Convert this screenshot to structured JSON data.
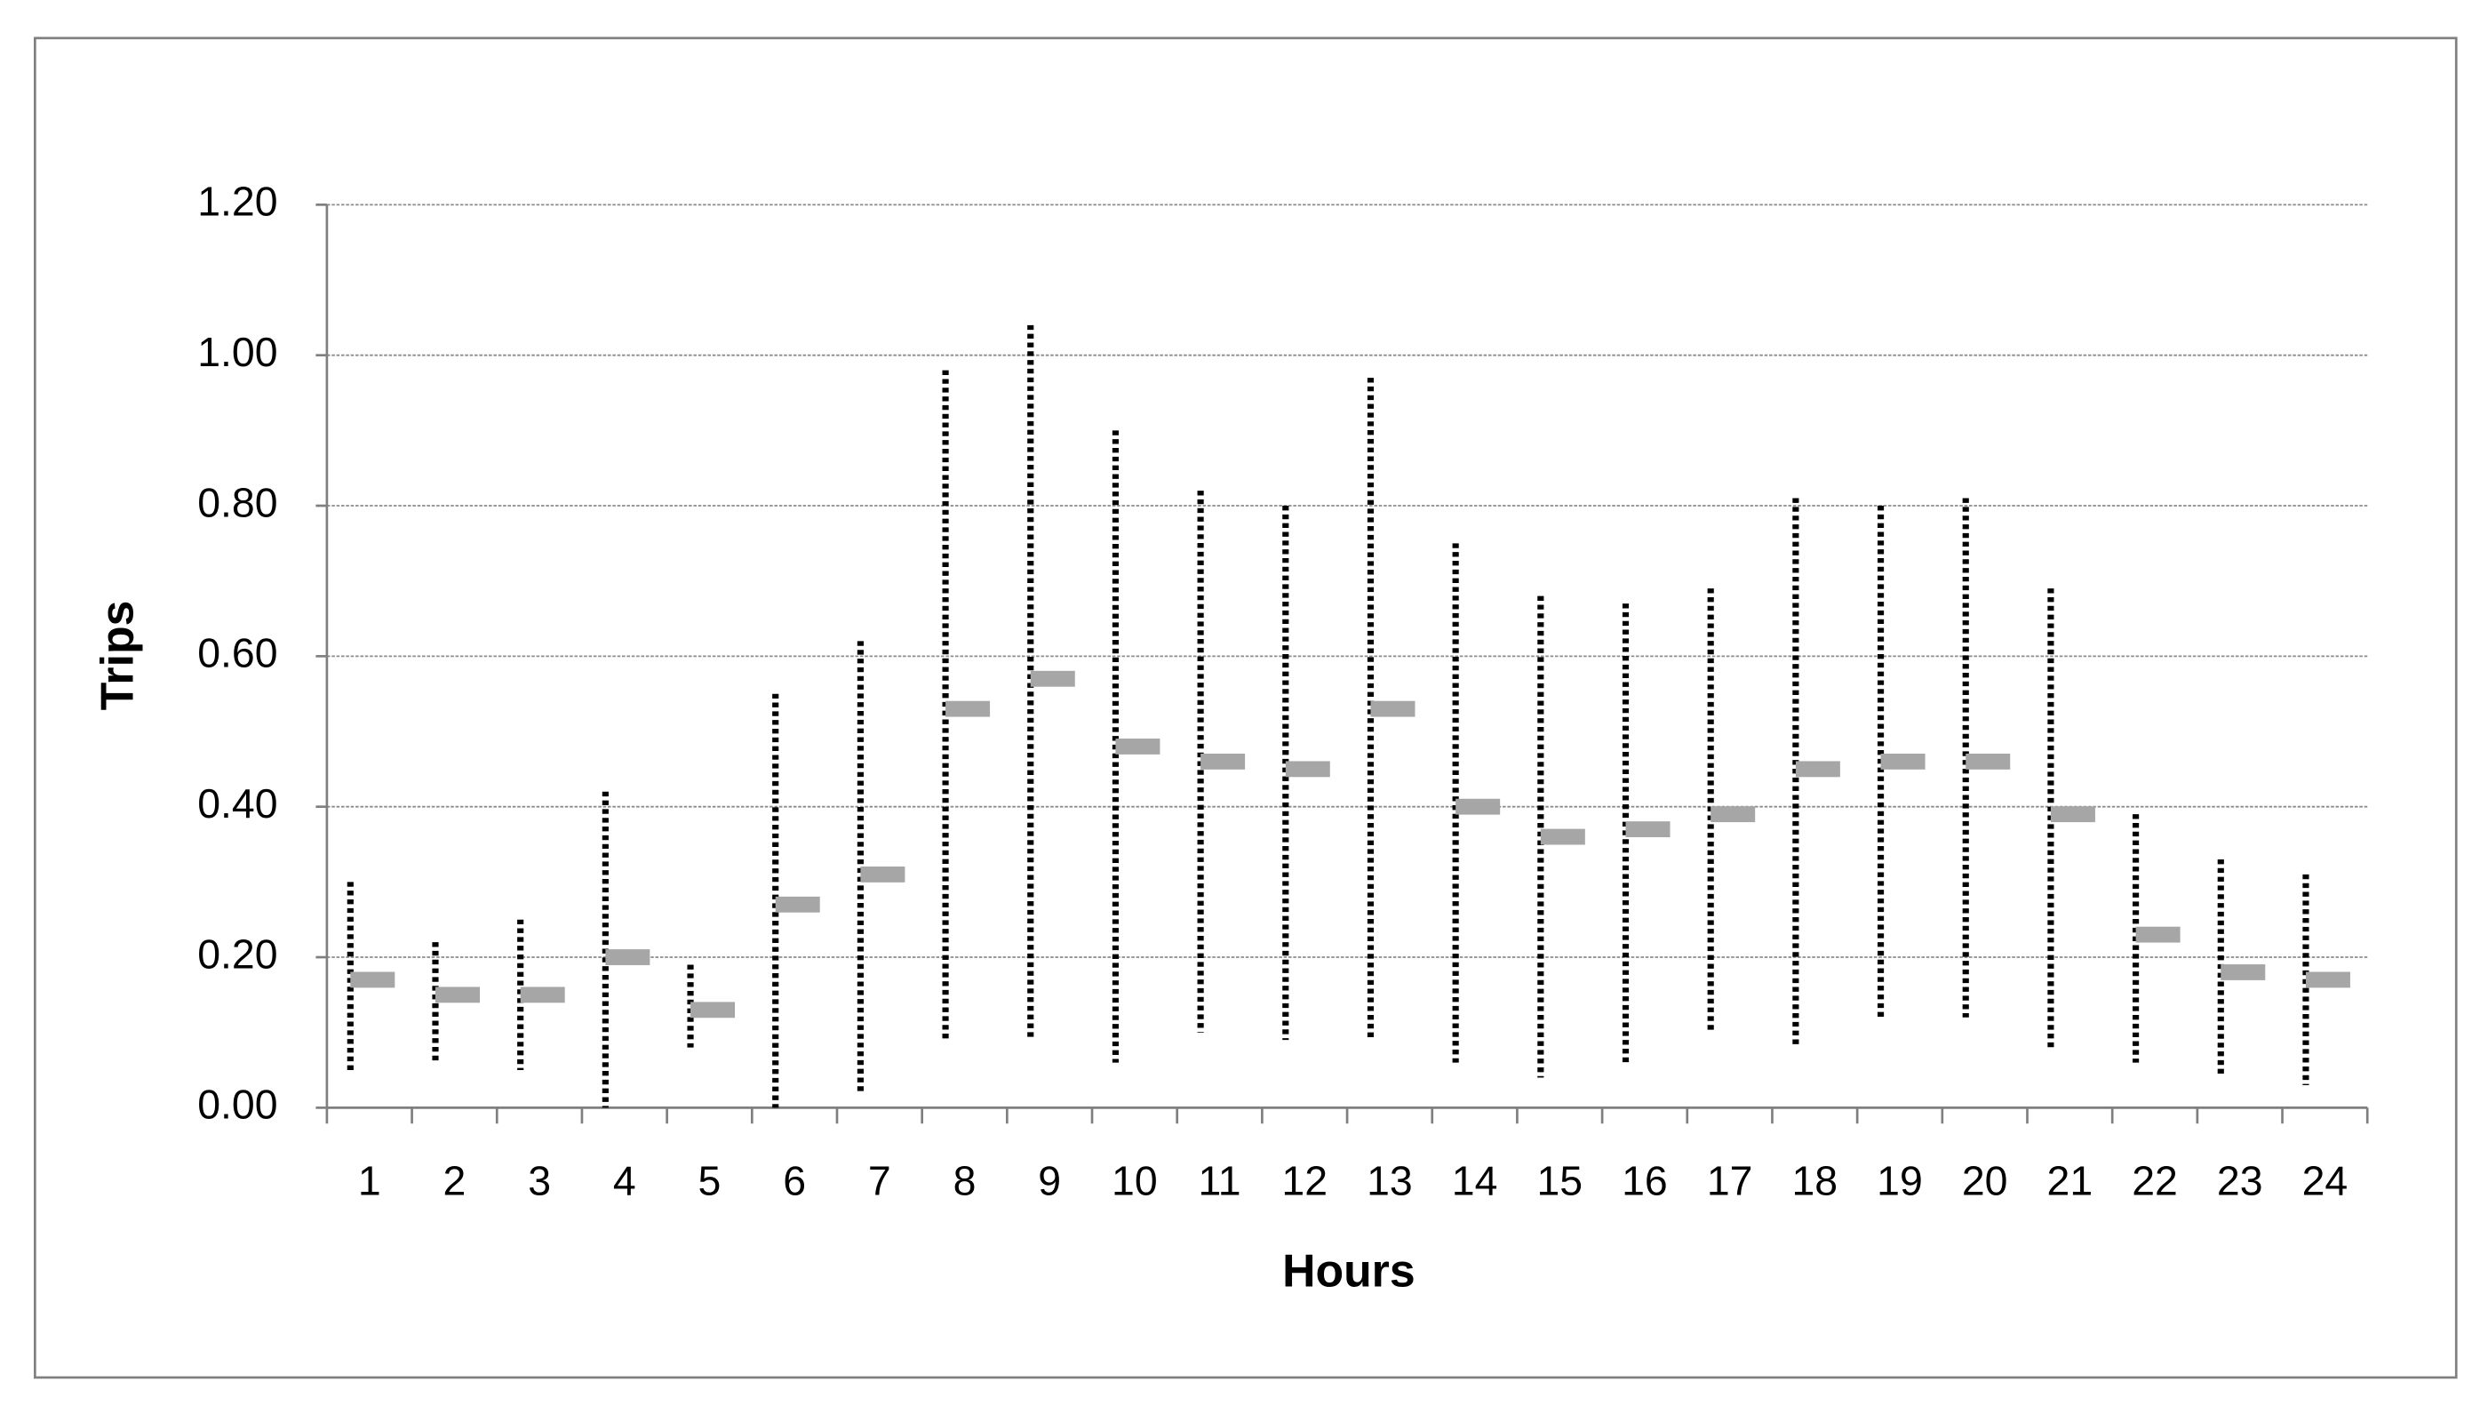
{
  "chart_data": {
    "type": "range",
    "y_label": "Trips",
    "x_label": "Hours",
    "categories": [
      "1",
      "2",
      "3",
      "4",
      "5",
      "6",
      "7",
      "8",
      "9",
      "10",
      "11",
      "12",
      "13",
      "14",
      "15",
      "16",
      "17",
      "18",
      "19",
      "20",
      "21",
      "22",
      "23",
      "24"
    ],
    "values": [
      0.17,
      0.15,
      0.15,
      0.2,
      0.13,
      0.27,
      0.31,
      0.53,
      0.57,
      0.48,
      0.46,
      0.45,
      0.53,
      0.4,
      0.36,
      0.37,
      0.39,
      0.45,
      0.46,
      0.46,
      0.39,
      0.23,
      0.18,
      0.17
    ],
    "low": [
      0.05,
      0.06,
      0.05,
      0.0,
      0.08,
      0.0,
      0.02,
      0.09,
      0.09,
      0.06,
      0.1,
      0.09,
      0.09,
      0.06,
      0.04,
      0.06,
      0.1,
      0.08,
      0.12,
      0.12,
      0.08,
      0.06,
      0.04,
      0.03
    ],
    "high": [
      0.3,
      0.22,
      0.25,
      0.42,
      0.19,
      0.55,
      0.62,
      0.98,
      1.04,
      0.9,
      0.82,
      0.8,
      0.97,
      0.75,
      0.68,
      0.67,
      0.69,
      0.81,
      0.8,
      0.81,
      0.69,
      0.39,
      0.33,
      0.31
    ],
    "color": "#a6a6a6",
    "range_color": "#000000",
    "ylim": [
      0,
      1.2
    ],
    "yticks": [
      {
        "value": 0,
        "label": "0.00"
      },
      {
        "value": 0.2,
        "label": "0.20"
      },
      {
        "value": 0.4,
        "label": "0.40"
      },
      {
        "value": 0.6,
        "label": "0.60"
      },
      {
        "value": 0.8,
        "label": "0.80"
      },
      {
        "value": 1.0,
        "label": "1.00"
      },
      {
        "value": 1.2,
        "label": "1.20"
      }
    ],
    "grid": true
  }
}
